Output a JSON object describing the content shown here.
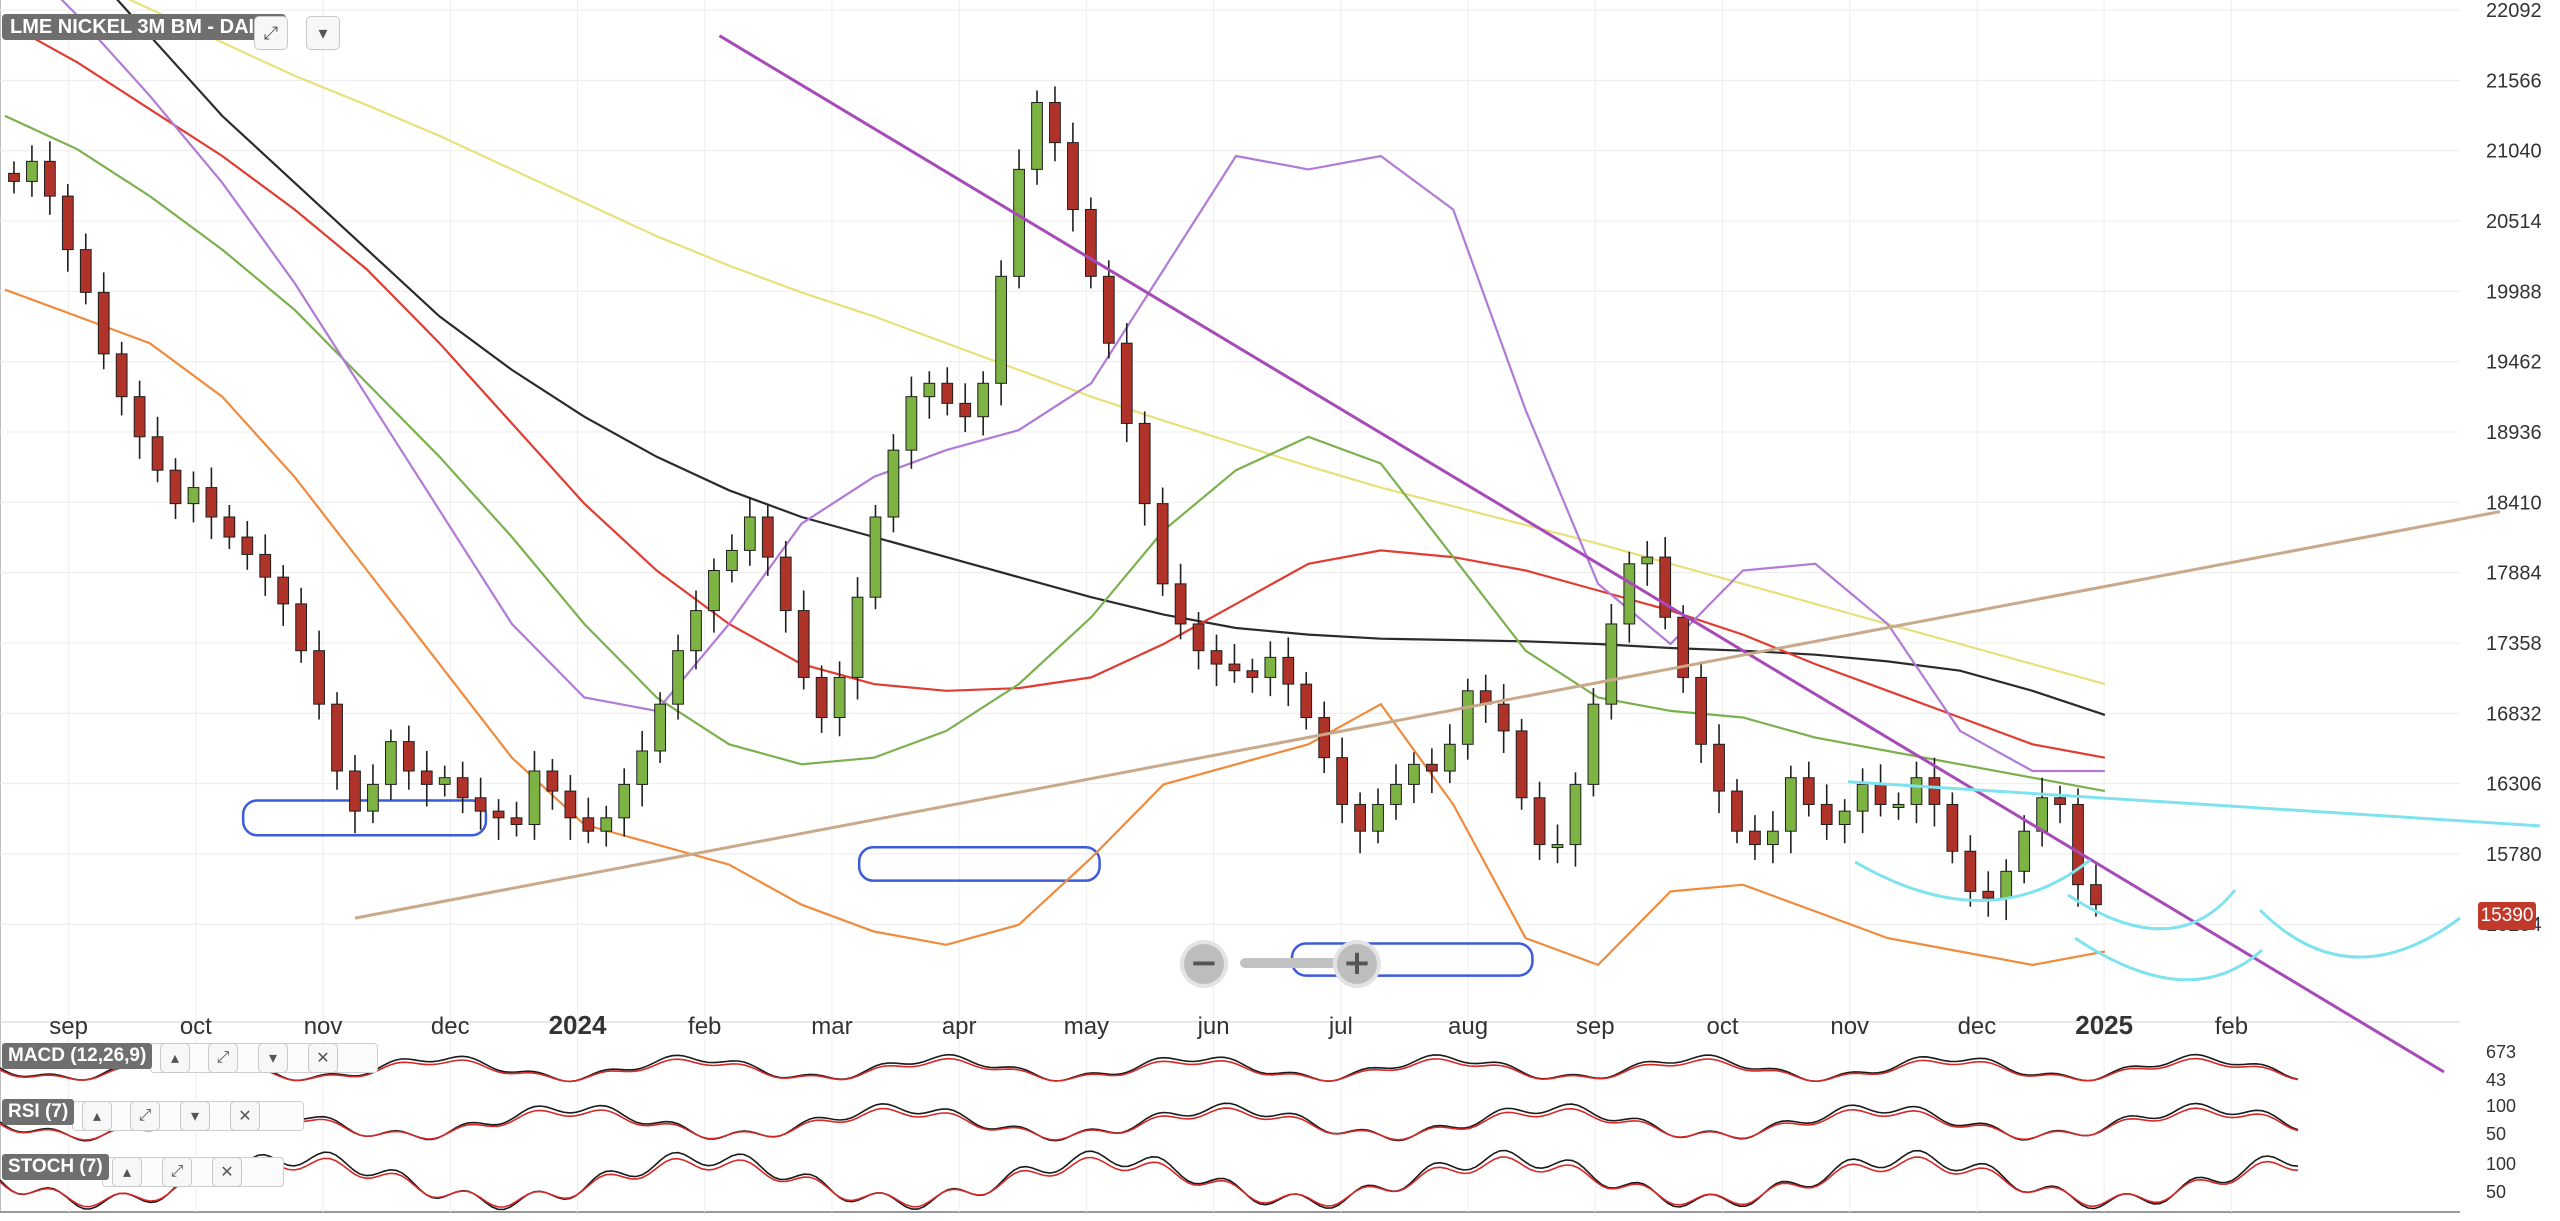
{
  "chart_data": {
    "type": "candlestick",
    "title": "LME NICKEL 3M BM - DAILY",
    "y_ticks": [
      22092,
      21566,
      21040,
      20514,
      19988,
      19462,
      18936,
      18410,
      17884,
      17358,
      16832,
      16306,
      15780,
      15254
    ],
    "ylim": [
      14650,
      22092
    ],
    "last_price": 15390,
    "x_labels": [
      "sep",
      "oct",
      "nov",
      "dec",
      "2024",
      "feb",
      "mar",
      "apr",
      "may",
      "jun",
      "jul",
      "aug",
      "sep",
      "oct",
      "nov",
      "dec",
      "2025",
      "feb"
    ],
    "x_year_labels": [
      "2024",
      "2025"
    ],
    "close_series": [
      20810,
      20960,
      20700,
      20300,
      19980,
      19520,
      19200,
      18900,
      18650,
      18400,
      18520,
      18300,
      18150,
      18020,
      17850,
      17650,
      17300,
      16900,
      16400,
      16100,
      16300,
      16620,
      16400,
      16300,
      16350,
      16200,
      16100,
      16050,
      16000,
      16400,
      16250,
      16050,
      15950,
      16050,
      16300,
      16550,
      16900,
      17300,
      17600,
      17900,
      18050,
      18300,
      18000,
      17600,
      17100,
      16800,
      17100,
      17700,
      18300,
      18800,
      19200,
      19300,
      19150,
      19050,
      19300,
      20100,
      20900,
      21400,
      21100,
      20600,
      20100,
      19600,
      19000,
      18400,
      17800,
      17500,
      17300,
      17200,
      17150,
      17100,
      17250,
      17050,
      16800,
      16500,
      16150,
      15950,
      16150,
      16300,
      16450,
      16400,
      16600,
      17000,
      16900,
      16700,
      16200,
      15850,
      15850,
      16300,
      16900,
      17500,
      17950,
      18000,
      17550,
      17100,
      16600,
      16250,
      15950,
      15850,
      15950,
      16350,
      16150,
      16000,
      16100,
      16300,
      16150,
      16150,
      16350,
      16150,
      15800,
      15500,
      15450,
      15650,
      15950,
      16200,
      16150,
      15550,
      15400
    ],
    "moving_averages": [
      {
        "color": "#2b2b2b",
        "values": [
          23000,
          22500,
          21900,
          21300,
          20800,
          20300,
          19800,
          19400,
          19050,
          18750,
          18500,
          18300,
          18150,
          18000,
          17850,
          17700,
          17570,
          17470,
          17420,
          17390,
          17380,
          17370,
          17350,
          17320,
          17300,
          17270,
          17220,
          17150,
          17000,
          16820
        ]
      },
      {
        "color": "#e8e07a",
        "values": [
          22600,
          22350,
          22100,
          21850,
          21600,
          21380,
          21150,
          20900,
          20650,
          20400,
          20180,
          19980,
          19800,
          19600,
          19400,
          19200,
          19020,
          18850,
          18680,
          18520,
          18380,
          18240,
          18100,
          17950,
          17800,
          17650,
          17500,
          17350,
          17200,
          17050
        ]
      },
      {
        "color": "#e03c31",
        "values": [
          22000,
          21700,
          21350,
          21000,
          20600,
          20150,
          19600,
          19000,
          18400,
          17900,
          17500,
          17200,
          17050,
          17000,
          17020,
          17100,
          17350,
          17650,
          17950,
          18050,
          18000,
          17900,
          17750,
          17600,
          17420,
          17200,
          17000,
          16800,
          16600,
          16500
        ]
      },
      {
        "color": "#7bb04e",
        "values": [
          21300,
          21050,
          20700,
          20300,
          19850,
          19300,
          18750,
          18150,
          17500,
          16950,
          16600,
          16450,
          16500,
          16700,
          17050,
          17550,
          18200,
          18650,
          18900,
          18700,
          18000,
          17300,
          16950,
          16850,
          16800,
          16650,
          16550,
          16450,
          16350,
          16250
        ]
      },
      {
        "color": "#b07ad6",
        "values": [
          22600,
          22050,
          21450,
          20800,
          20050,
          19200,
          18350,
          17500,
          16950,
          16850,
          17500,
          18250,
          18600,
          18800,
          18950,
          19300,
          20150,
          21000,
          20900,
          21000,
          20600,
          19100,
          17800,
          17350,
          17900,
          17950,
          17500,
          16700,
          16400,
          16400
        ]
      },
      {
        "color": "#f08a3c",
        "values": [
          20000,
          19800,
          19600,
          19200,
          18600,
          17900,
          17200,
          16500,
          16000,
          15850,
          15700,
          15400,
          15200,
          15100,
          15250,
          15750,
          16300,
          16450,
          16600,
          16900,
          16150,
          15150,
          14950,
          15500,
          15550,
          15350,
          15150,
          15050,
          14950,
          15050
        ]
      }
    ],
    "support_zones": [
      [
        15920,
        16180
      ],
      [
        15580,
        15830
      ],
      [
        14870,
        15110
      ]
    ],
    "annotations": {
      "upper_trendline": "down",
      "lower_trendline": "up",
      "resistance_channel": "flat",
      "rounded_bottoms": 4
    },
    "indicators": [
      {
        "name": "MACD (12,26,9)",
        "levels": [
          "673",
          "43"
        ]
      },
      {
        "name": "RSI (7)",
        "levels": [
          "100",
          "50"
        ]
      },
      {
        "name": "STOCH (7)",
        "levels": [
          "100",
          "50"
        ]
      }
    ]
  }
}
